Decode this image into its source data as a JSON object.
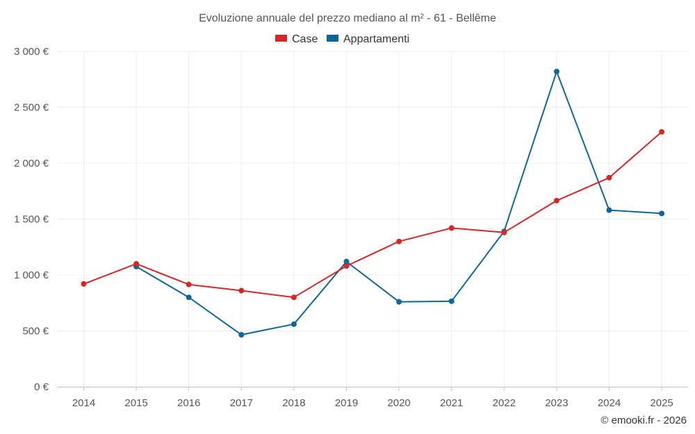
{
  "chart_data": {
    "type": "line",
    "title": "Evoluzione annuale del prezzo mediano al m² - 61 - Bellême",
    "categories": [
      "2014",
      "2015",
      "2016",
      "2017",
      "2018",
      "2019",
      "2020",
      "2021",
      "2022",
      "2023",
      "2024",
      "2025"
    ],
    "series": [
      {
        "name": "Case",
        "color": "#d62728",
        "values": [
          920,
          1100,
          915,
          860,
          800,
          1080,
          1300,
          1420,
          1380,
          1665,
          1870,
          2280
        ]
      },
      {
        "name": "Appartamenti",
        "color": "#0e6698",
        "values": [
          null,
          1075,
          800,
          465,
          560,
          1120,
          760,
          765,
          1390,
          2820,
          1580,
          1550
        ]
      }
    ],
    "ylim": [
      0,
      3000
    ],
    "yticks": [
      0,
      500,
      1000,
      1500,
      2000,
      2500,
      3000
    ],
    "ytick_labels": [
      "0 €",
      "500 €",
      "1 000 €",
      "1 500 €",
      "2 000 €",
      "2 500 €",
      "3 000 €"
    ],
    "xlabel": "",
    "ylabel": "",
    "grid": true,
    "legend_position": "top-center"
  },
  "footer": {
    "credit": "© emooki.fr - 2026"
  }
}
